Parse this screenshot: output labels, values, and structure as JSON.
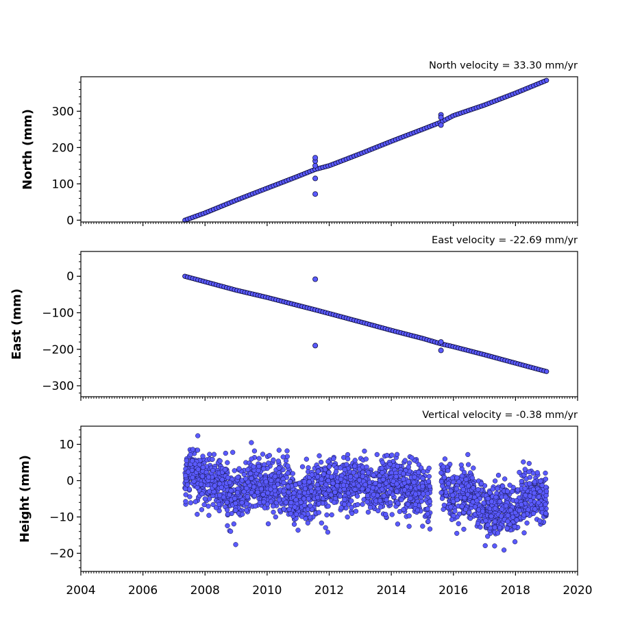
{
  "chart_data": [
    {
      "type": "scatter",
      "title": "North velocity = 33.30 mm/yr",
      "xlabel": "",
      "ylabel": "North (mm)",
      "xlim": [
        2004,
        2020
      ],
      "ylim": [
        -5,
        395
      ],
      "yticks": [
        0,
        100,
        200,
        300
      ],
      "ytick_labels": [
        "0",
        "100",
        "200",
        "300"
      ],
      "grid": false,
      "series": [
        {
          "x": [
            2007.35,
            2008.0,
            2009.0,
            2010.0,
            2011.0,
            2011.55,
            2012.0,
            2013.0,
            2014.0,
            2015.0,
            2015.6,
            2016.0,
            2017.0,
            2018.0,
            2019.0
          ],
          "y": [
            0,
            20,
            55,
            88,
            121,
            140,
            150,
            183,
            217,
            250,
            270,
            288,
            317,
            350,
            385
          ]
        },
        {
          "x": [
            2011.55,
            2011.55,
            2011.55,
            2011.55,
            2011.55,
            2015.6,
            2015.6,
            2015.6
          ],
          "y": [
            72,
            115,
            150,
            163,
            172,
            290,
            283,
            262
          ]
        }
      ]
    },
    {
      "type": "scatter",
      "title": "East velocity = -22.69 mm/yr",
      "xlabel": "",
      "ylabel": "East (mm)",
      "xlim": [
        2004,
        2020
      ],
      "ylim": [
        -330,
        68
      ],
      "yticks": [
        0,
        -100,
        -200,
        -300
      ],
      "ytick_labels": [
        "0",
        "−100",
        "−200",
        "−300"
      ],
      "grid": false,
      "series": [
        {
          "x": [
            2007.35,
            2008.0,
            2009.0,
            2010.0,
            2011.0,
            2011.55,
            2012.0,
            2013.0,
            2014.0,
            2015.0,
            2015.6,
            2016.0,
            2017.0,
            2018.0,
            2019.0
          ],
          "y": [
            0,
            -15,
            -38,
            -58,
            -80,
            -92,
            -102,
            -125,
            -148,
            -170,
            -185,
            -193,
            -215,
            -238,
            -261
          ]
        },
        {
          "x": [
            2011.55,
            2011.55,
            2015.6,
            2015.6
          ],
          "y": [
            -8,
            -190,
            -180,
            -203
          ]
        }
      ]
    },
    {
      "type": "scatter",
      "title": "Vertical velocity = -0.38 mm/yr",
      "xlabel": "",
      "ylabel": "Height (mm)",
      "xlim": [
        2004,
        2020
      ],
      "ylim": [
        -25,
        15
      ],
      "yticks": [
        10,
        0,
        -10,
        -20
      ],
      "ytick_labels": [
        "10",
        "0",
        "−10",
        "−20"
      ],
      "xticks": [
        2004,
        2006,
        2008,
        2010,
        2012,
        2014,
        2016,
        2018,
        2020
      ],
      "xtick_labels": [
        "2004",
        "2006",
        "2008",
        "2010",
        "2012",
        "2014",
        "2016",
        "2018",
        "2020"
      ],
      "grid": false,
      "series": [
        {
          "x": [
            2007.35,
            2007.6,
            2008.0,
            2008.5,
            2009.0,
            2009.5,
            2010.0,
            2010.5,
            2011.0,
            2011.5,
            2012.0,
            2012.5,
            2013.0,
            2013.5,
            2014.0,
            2014.5,
            2015.0,
            2015.2,
            2015.65,
            2016.0,
            2016.5,
            2017.0,
            2017.3,
            2017.6,
            2018.0,
            2018.5,
            2019.0
          ],
          "y": [
            -1,
            3,
            1,
            -1,
            -5,
            0,
            -2,
            -1,
            -6,
            -2,
            -2,
            -1,
            -1,
            -2,
            0,
            -2,
            -3,
            -5,
            0,
            -5,
            -3,
            -8,
            -10,
            -7,
            -8,
            -4,
            -6
          ]
        }
      ]
    }
  ],
  "colors": {
    "marker_fill": "#5a5aff",
    "marker_edge": "#10103c",
    "line_series": "#1c1c5a"
  }
}
